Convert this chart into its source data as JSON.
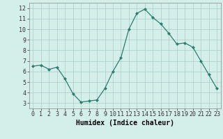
{
  "x": [
    0,
    1,
    2,
    3,
    4,
    5,
    6,
    7,
    8,
    9,
    10,
    11,
    12,
    13,
    14,
    15,
    16,
    17,
    18,
    19,
    20,
    21,
    22,
    23
  ],
  "y": [
    6.5,
    6.6,
    6.2,
    6.4,
    5.3,
    3.9,
    3.1,
    3.2,
    3.3,
    4.4,
    6.0,
    7.3,
    10.0,
    11.5,
    11.9,
    11.1,
    10.5,
    9.6,
    8.6,
    8.7,
    8.3,
    7.0,
    5.7,
    4.4
  ],
  "line_color": "#2e7d6e",
  "marker": "D",
  "marker_size": 2.0,
  "bg_color": "#d4eeea",
  "grid_color": "#aaccc8",
  "xlabel": "Humidex (Indice chaleur)",
  "xlim": [
    -0.5,
    23.5
  ],
  "ylim": [
    2.5,
    12.5
  ],
  "yticks": [
    3,
    4,
    5,
    6,
    7,
    8,
    9,
    10,
    11,
    12
  ],
  "xticks": [
    0,
    1,
    2,
    3,
    4,
    5,
    6,
    7,
    8,
    9,
    10,
    11,
    12,
    13,
    14,
    15,
    16,
    17,
    18,
    19,
    20,
    21,
    22,
    23
  ],
  "axis_fontsize": 6.5,
  "tick_fontsize": 6.0,
  "xlabel_fontsize": 7.0
}
